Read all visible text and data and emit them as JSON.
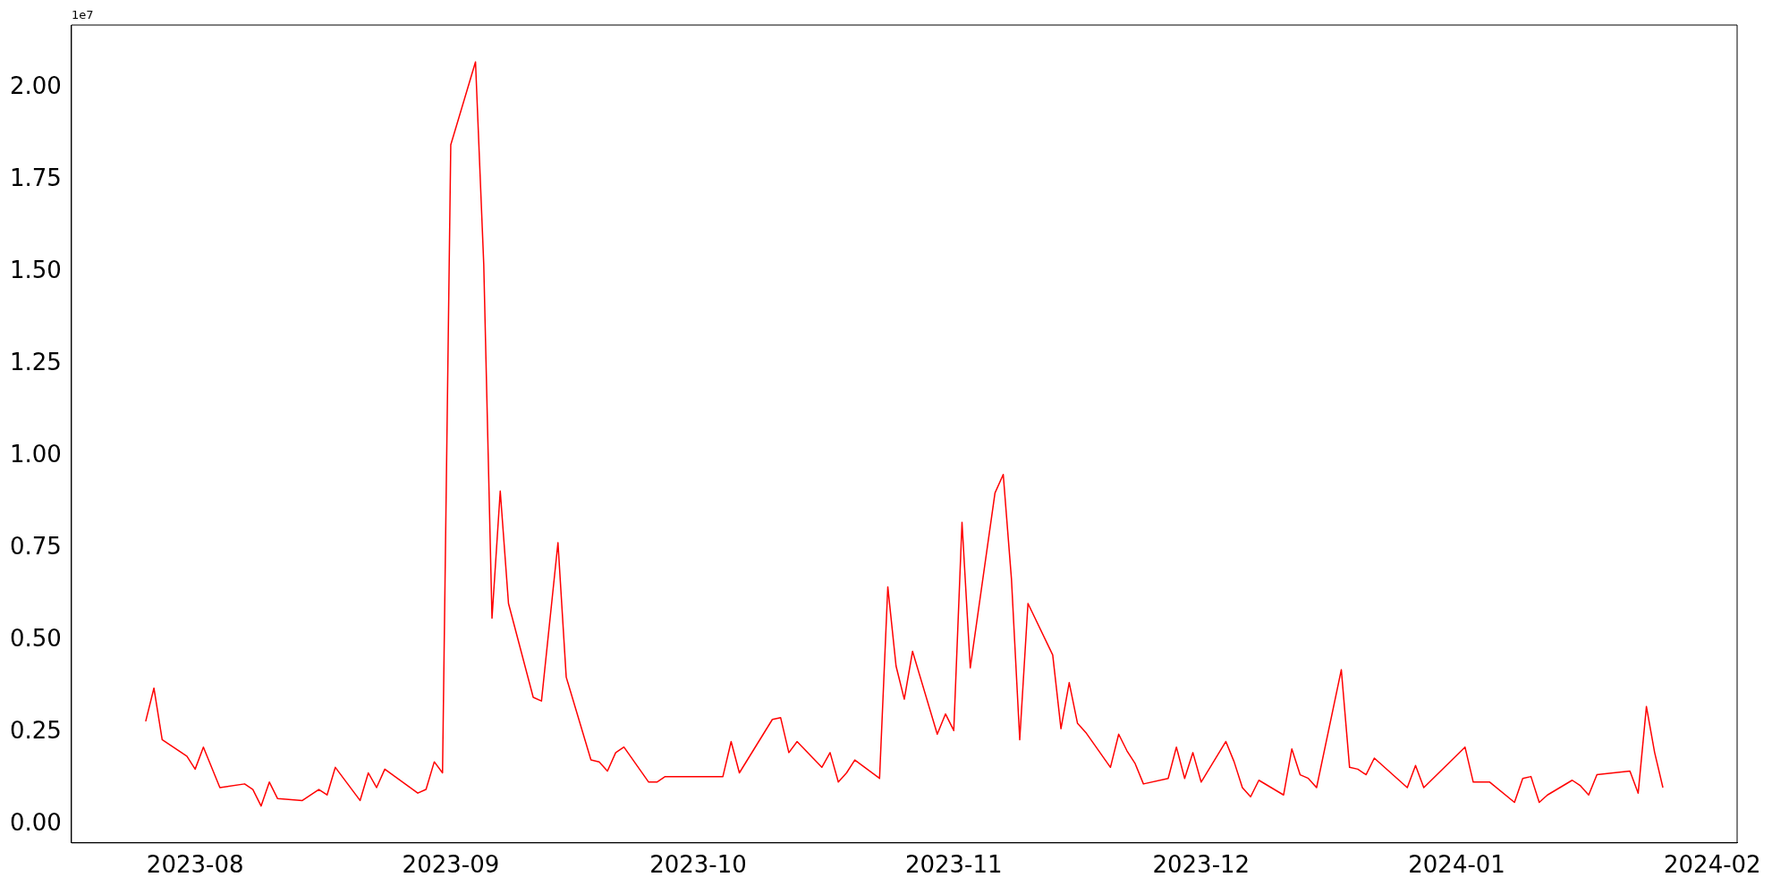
{
  "chart_data": {
    "type": "line",
    "annotations": [
      "1e7"
    ],
    "grid": false,
    "legend": false,
    "marker": "none",
    "line_style": "solid",
    "xlim": [
      "2023-07-17",
      "2024-02-04"
    ],
    "xticks": [
      {
        "value": "2023-08-01",
        "label": "2023-08"
      },
      {
        "value": "2023-09-01",
        "label": "2023-09"
      },
      {
        "value": "2023-10-01",
        "label": "2023-10"
      },
      {
        "value": "2023-11-01",
        "label": "2023-11"
      },
      {
        "value": "2023-12-01",
        "label": "2023-12"
      },
      {
        "value": "2024-01-01",
        "label": "2024-01"
      },
      {
        "value": "2024-02-01",
        "label": "2024-02"
      }
    ],
    "ylim": [
      -0.05,
      2.17
    ],
    "yticks": [
      {
        "value": 0,
        "label": "0.00"
      },
      {
        "value": 0.25,
        "label": "0.25"
      },
      {
        "value": 0.5,
        "label": "0.50"
      },
      {
        "value": 0.75,
        "label": "0.75"
      },
      {
        "value": 1,
        "label": "1.00"
      },
      {
        "value": 1.25,
        "label": "1.25"
      },
      {
        "value": 1.5,
        "label": "1.50"
      },
      {
        "value": 1.75,
        "label": "1.75"
      },
      {
        "value": 2,
        "label": "2.00"
      }
    ],
    "x": [
      "2023-07-26",
      "2023-07-27",
      "2023-07-28",
      "2023-07-31",
      "2023-08-01",
      "2023-08-02",
      "2023-08-04",
      "2023-08-07",
      "2023-08-08",
      "2023-08-09",
      "2023-08-10",
      "2023-08-11",
      "2023-08-14",
      "2023-08-16",
      "2023-08-17",
      "2023-08-18",
      "2023-08-21",
      "2023-08-22",
      "2023-08-23",
      "2023-08-24",
      "2023-08-28",
      "2023-08-29",
      "2023-08-30",
      "2023-08-31",
      "2023-09-01",
      "2023-09-04",
      "2023-09-05",
      "2023-09-06",
      "2023-09-07",
      "2023-09-08",
      "2023-09-11",
      "2023-09-12",
      "2023-09-14",
      "2023-09-15",
      "2023-09-18",
      "2023-09-19",
      "2023-09-20",
      "2023-09-21",
      "2023-09-22",
      "2023-09-25",
      "2023-09-26",
      "2023-09-27",
      "2023-10-04",
      "2023-10-05",
      "2023-10-06",
      "2023-10-10",
      "2023-10-11",
      "2023-10-12",
      "2023-10-13",
      "2023-10-16",
      "2023-10-17",
      "2023-10-18",
      "2023-10-19",
      "2023-10-20",
      "2023-10-23",
      "2023-10-24",
      "2023-10-25",
      "2023-10-26",
      "2023-10-27",
      "2023-10-30",
      "2023-10-31",
      "2023-11-01",
      "2023-11-02",
      "2023-11-03",
      "2023-11-06",
      "2023-11-07",
      "2023-11-08",
      "2023-11-09",
      "2023-11-10",
      "2023-11-13",
      "2023-11-14",
      "2023-11-15",
      "2023-11-16",
      "2023-11-17",
      "2023-11-20",
      "2023-11-21",
      "2023-11-22",
      "2023-11-23",
      "2023-11-24",
      "2023-11-27",
      "2023-11-28",
      "2023-11-29",
      "2023-11-30",
      "2023-12-01",
      "2023-12-04",
      "2023-12-05",
      "2023-12-06",
      "2023-12-07",
      "2023-12-08",
      "2023-12-11",
      "2023-12-12",
      "2023-12-13",
      "2023-12-14",
      "2023-12-15",
      "2023-12-18",
      "2023-12-19",
      "2023-12-20",
      "2023-12-21",
      "2023-12-22",
      "2023-12-26",
      "2023-12-27",
      "2023-12-28",
      "2024-01-02",
      "2024-01-03",
      "2024-01-05",
      "2024-01-08",
      "2024-01-09",
      "2024-01-10",
      "2024-01-11",
      "2024-01-12",
      "2024-01-15",
      "2024-01-16",
      "2024-01-17",
      "2024-01-18",
      "2024-01-22",
      "2024-01-23",
      "2024-01-24",
      "2024-01-25",
      "2024-01-26"
    ],
    "series": [
      {
        "color": "#ff0000",
        "values": [
          0.28,
          0.37,
          0.23,
          0.185,
          0.15,
          0.21,
          0.1,
          0.11,
          0.095,
          0.05,
          0.115,
          0.07,
          0.065,
          0.095,
          0.08,
          0.155,
          0.065,
          0.14,
          0.1,
          0.15,
          0.085,
          0.095,
          0.17,
          0.14,
          1.845,
          2.07,
          1.52,
          0.56,
          0.905,
          0.6,
          0.345,
          0.335,
          0.765,
          0.4,
          0.175,
          0.17,
          0.145,
          0.195,
          0.21,
          0.115,
          0.115,
          0.13,
          0.13,
          0.225,
          0.14,
          0.285,
          0.29,
          0.195,
          0.225,
          0.155,
          0.195,
          0.115,
          0.14,
          0.175,
          0.125,
          0.645,
          0.43,
          0.34,
          0.47,
          0.245,
          0.3,
          0.255,
          0.82,
          0.425,
          0.9,
          0.95,
          0.665,
          0.23,
          0.6,
          0.46,
          0.26,
          0.385,
          0.275,
          0.25,
          0.155,
          0.245,
          0.2,
          0.165,
          0.11,
          0.125,
          0.21,
          0.125,
          0.195,
          0.115,
          0.225,
          0.17,
          0.1,
          0.075,
          0.12,
          0.08,
          0.205,
          0.135,
          0.125,
          0.1,
          0.42,
          0.155,
          0.15,
          0.135,
          0.18,
          0.1,
          0.16,
          0.1,
          0.21,
          0.115,
          0.115,
          0.06,
          0.125,
          0.13,
          0.06,
          0.08,
          0.12,
          0.105,
          0.08,
          0.135,
          0.145,
          0.085,
          0.32,
          0.195,
          0.1
        ]
      }
    ]
  }
}
